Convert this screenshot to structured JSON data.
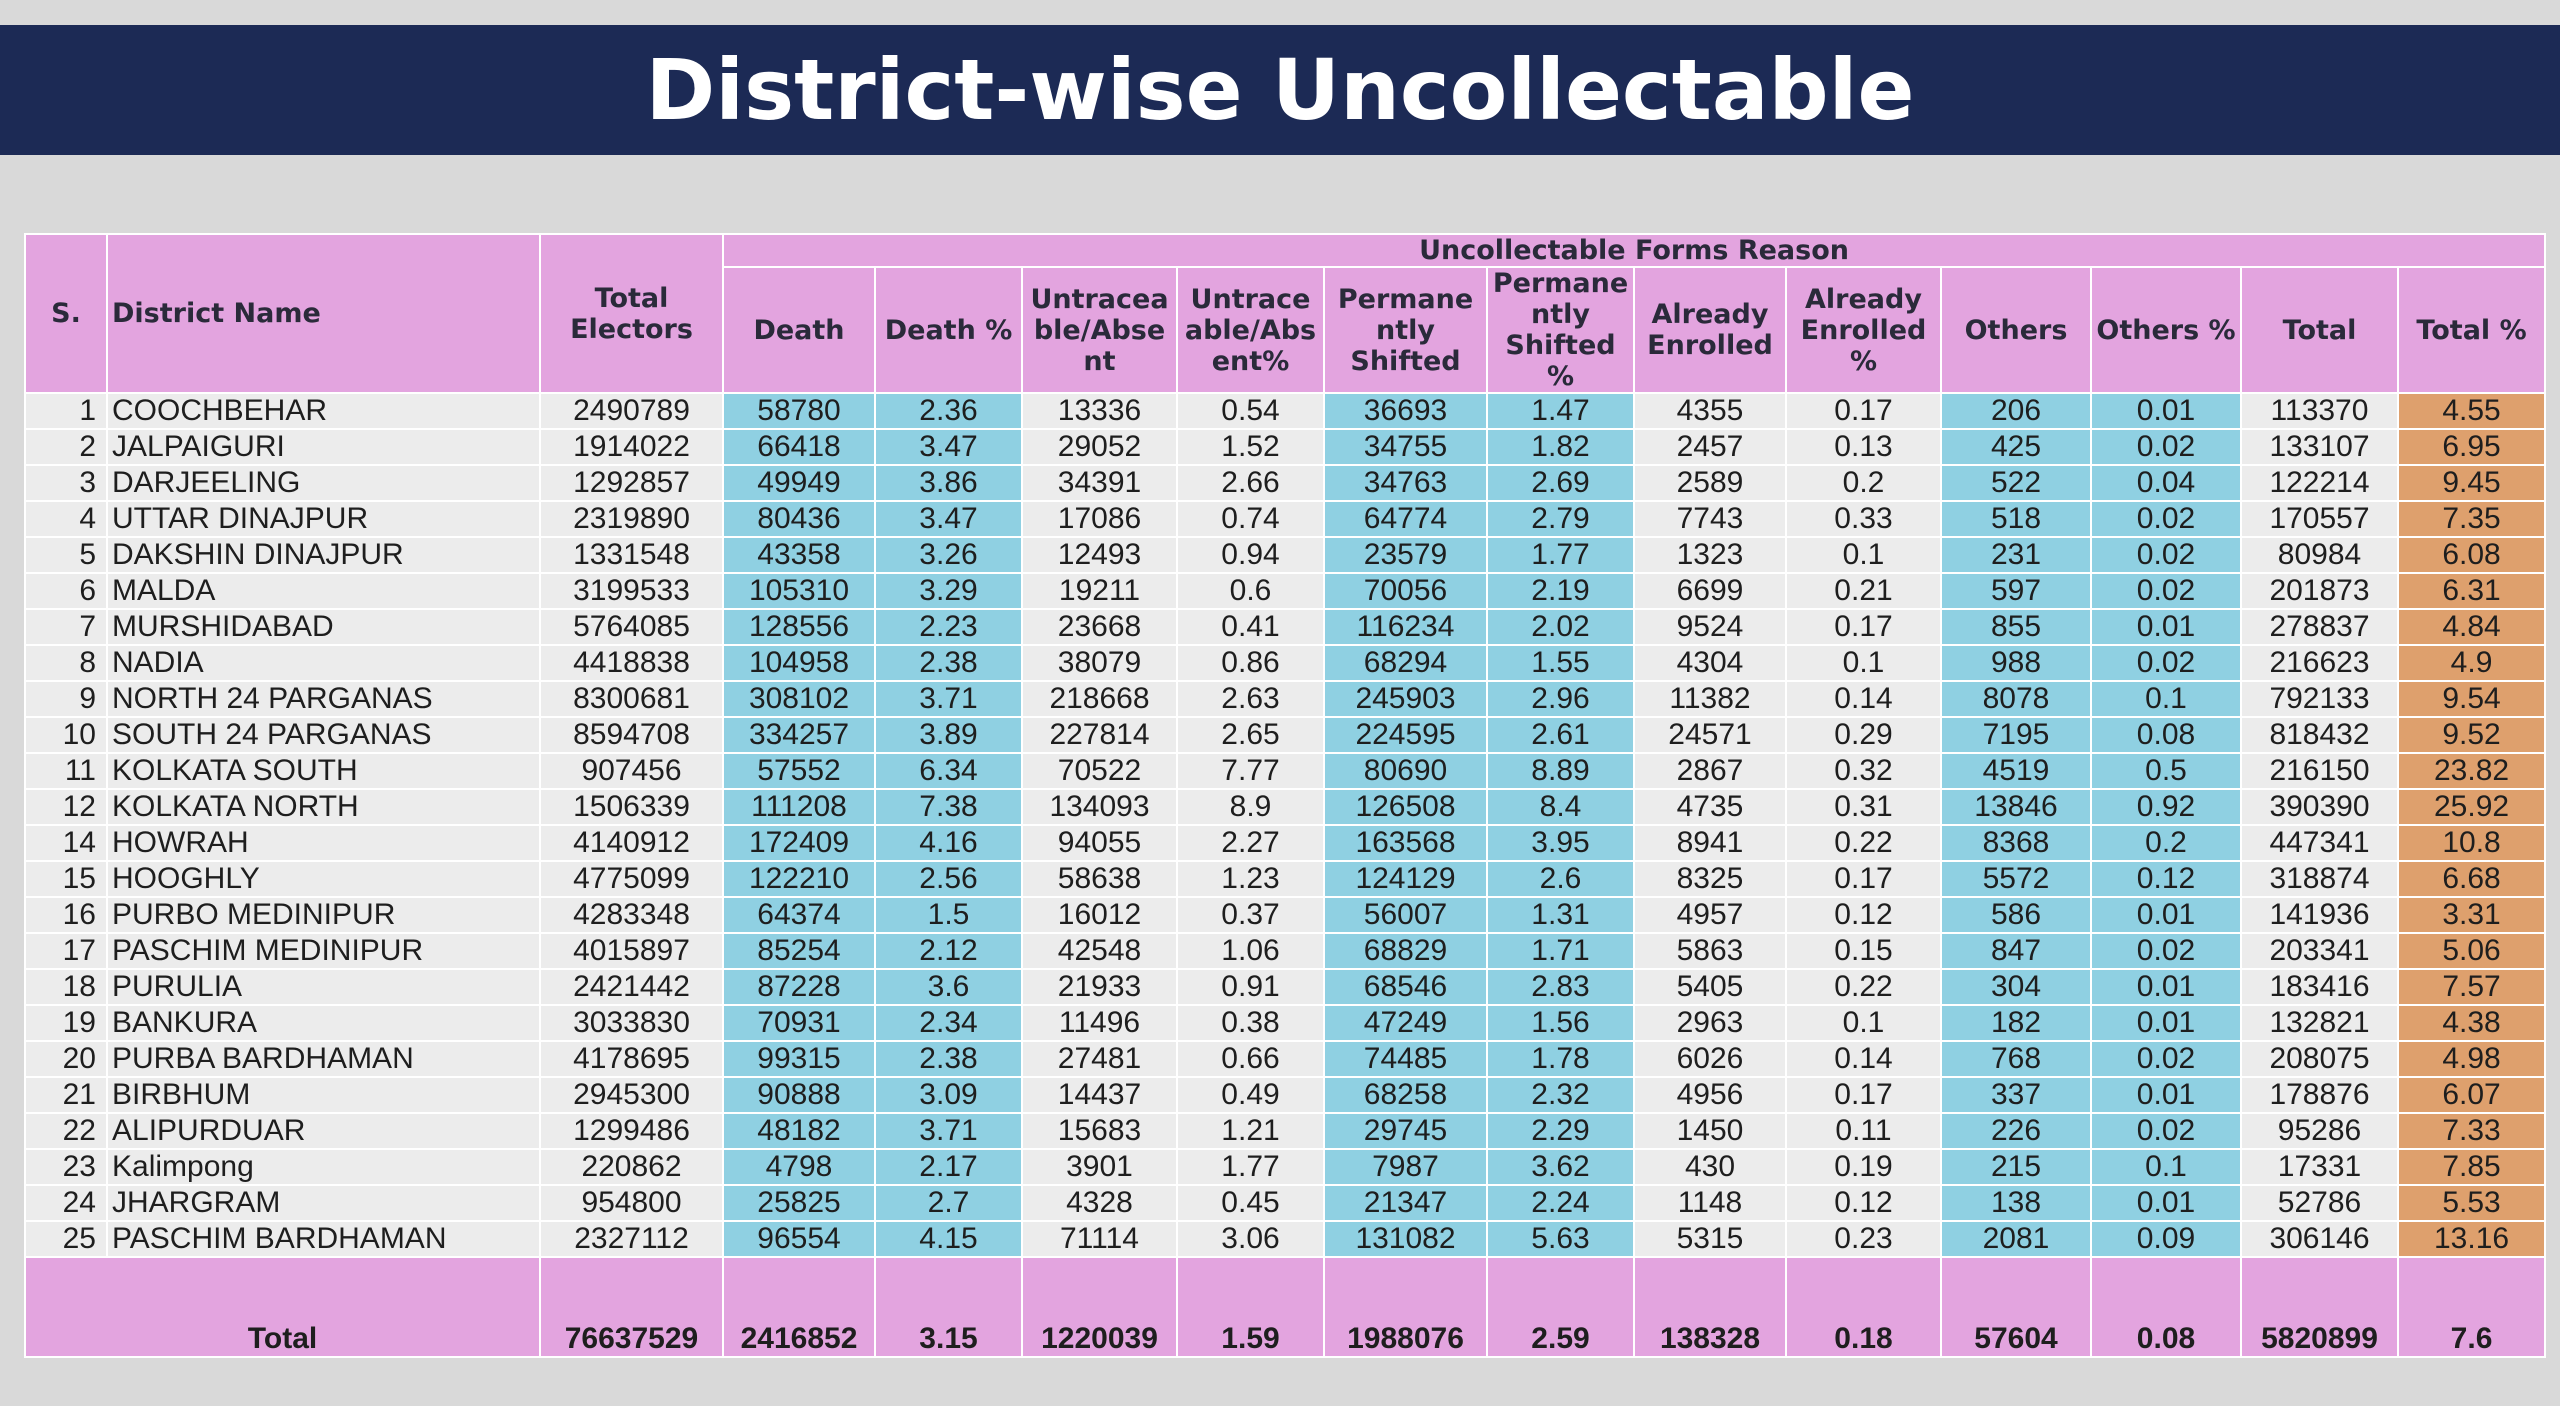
{
  "header": {
    "title": "District-wise Uncollectable"
  },
  "table": {
    "group_header": "Uncollectable Forms Reason",
    "columns": [
      "S.",
      "District Name",
      "Total Electors",
      "Death",
      "Death %",
      "Untraceable/Absent",
      "Untraceable/Absent%",
      "Permanently Shifted",
      "Permanently Shifted %",
      "Already Enrolled",
      "Already Enrolled %",
      "Others",
      "Others %",
      "Total",
      "Total %"
    ],
    "rows": [
      [
        1,
        "COOCHBEHAR",
        2490789,
        58780,
        2.36,
        13336,
        0.54,
        36693,
        1.47,
        4355,
        0.17,
        206,
        0.01,
        113370,
        4.55
      ],
      [
        2,
        "JALPAIGURI",
        1914022,
        66418,
        3.47,
        29052,
        1.52,
        34755,
        1.82,
        2457,
        0.13,
        425,
        0.02,
        133107,
        6.95
      ],
      [
        3,
        "DARJEELING",
        1292857,
        49949,
        3.86,
        34391,
        2.66,
        34763,
        2.69,
        2589,
        0.2,
        522,
        0.04,
        122214,
        9.45
      ],
      [
        4,
        "UTTAR DINAJPUR",
        2319890,
        80436,
        3.47,
        17086,
        0.74,
        64774,
        2.79,
        7743,
        0.33,
        518,
        0.02,
        170557,
        7.35
      ],
      [
        5,
        "DAKSHIN DINAJPUR",
        1331548,
        43358,
        3.26,
        12493,
        0.94,
        23579,
        1.77,
        1323,
        0.1,
        231,
        0.02,
        80984,
        6.08
      ],
      [
        6,
        "MALDA",
        3199533,
        105310,
        3.29,
        19211,
        0.6,
        70056,
        2.19,
        6699,
        0.21,
        597,
        0.02,
        201873,
        6.31
      ],
      [
        7,
        "MURSHIDABAD",
        5764085,
        128556,
        2.23,
        23668,
        0.41,
        116234,
        2.02,
        9524,
        0.17,
        855,
        0.01,
        278837,
        4.84
      ],
      [
        8,
        "NADIA",
        4418838,
        104958,
        2.38,
        38079,
        0.86,
        68294,
        1.55,
        4304,
        0.1,
        988,
        0.02,
        216623,
        4.9
      ],
      [
        9,
        "NORTH 24 PARGANAS",
        8300681,
        308102,
        3.71,
        218668,
        2.63,
        245903,
        2.96,
        11382,
        0.14,
        8078,
        0.1,
        792133,
        9.54
      ],
      [
        10,
        "SOUTH 24 PARGANAS",
        8594708,
        334257,
        3.89,
        227814,
        2.65,
        224595,
        2.61,
        24571,
        0.29,
        7195,
        0.08,
        818432,
        9.52
      ],
      [
        11,
        "KOLKATA SOUTH",
        907456,
        57552,
        6.34,
        70522,
        7.77,
        80690,
        8.89,
        2867,
        0.32,
        4519,
        0.5,
        216150,
        23.82
      ],
      [
        12,
        "KOLKATA NORTH",
        1506339,
        111208,
        7.38,
        134093,
        8.9,
        126508,
        8.4,
        4735,
        0.31,
        13846,
        0.92,
        390390,
        25.92
      ],
      [
        14,
        "HOWRAH",
        4140912,
        172409,
        4.16,
        94055,
        2.27,
        163568,
        3.95,
        8941,
        0.22,
        8368,
        0.2,
        447341,
        10.8
      ],
      [
        15,
        "HOOGHLY",
        4775099,
        122210,
        2.56,
        58638,
        1.23,
        124129,
        2.6,
        8325,
        0.17,
        5572,
        0.12,
        318874,
        6.68
      ],
      [
        16,
        "PURBO MEDINIPUR",
        4283348,
        64374,
        1.5,
        16012,
        0.37,
        56007,
        1.31,
        4957,
        0.12,
        586,
        0.01,
        141936,
        3.31
      ],
      [
        17,
        "PASCHIM MEDINIPUR",
        4015897,
        85254,
        2.12,
        42548,
        1.06,
        68829,
        1.71,
        5863,
        0.15,
        847,
        0.02,
        203341,
        5.06
      ],
      [
        18,
        "PURULIA",
        2421442,
        87228,
        3.6,
        21933,
        0.91,
        68546,
        2.83,
        5405,
        0.22,
        304,
        0.01,
        183416,
        7.57
      ],
      [
        19,
        "BANKURA",
        3033830,
        70931,
        2.34,
        11496,
        0.38,
        47249,
        1.56,
        2963,
        0.1,
        182,
        0.01,
        132821,
        4.38
      ],
      [
        20,
        "PURBA BARDHAMAN",
        4178695,
        99315,
        2.38,
        27481,
        0.66,
        74485,
        1.78,
        6026,
        0.14,
        768,
        0.02,
        208075,
        4.98
      ],
      [
        21,
        "BIRBHUM",
        2945300,
        90888,
        3.09,
        14437,
        0.49,
        68258,
        2.32,
        4956,
        0.17,
        337,
        0.01,
        178876,
        6.07
      ],
      [
        22,
        "ALIPURDUAR",
        1299486,
        48182,
        3.71,
        15683,
        1.21,
        29745,
        2.29,
        1450,
        0.11,
        226,
        0.02,
        95286,
        7.33
      ],
      [
        23,
        "Kalimpong",
        220862,
        4798,
        2.17,
        3901,
        1.77,
        7987,
        3.62,
        430,
        0.19,
        215,
        0.1,
        17331,
        7.85
      ],
      [
        24,
        "JHARGRAM",
        954800,
        25825,
        2.7,
        4328,
        0.45,
        21347,
        2.24,
        1148,
        0.12,
        138,
        0.01,
        52786,
        5.53
      ],
      [
        25,
        "PASCHIM BARDHAMAN",
        2327112,
        96554,
        4.15,
        71114,
        3.06,
        131082,
        5.63,
        5315,
        0.23,
        2081,
        0.09,
        306146,
        13.16
      ]
    ],
    "total": [
      "Total",
      76637529,
      2416852,
      3.15,
      1220039,
      1.59,
      1988076,
      2.59,
      138328,
      0.18,
      57604,
      0.08,
      5820899,
      7.6
    ]
  }
}
